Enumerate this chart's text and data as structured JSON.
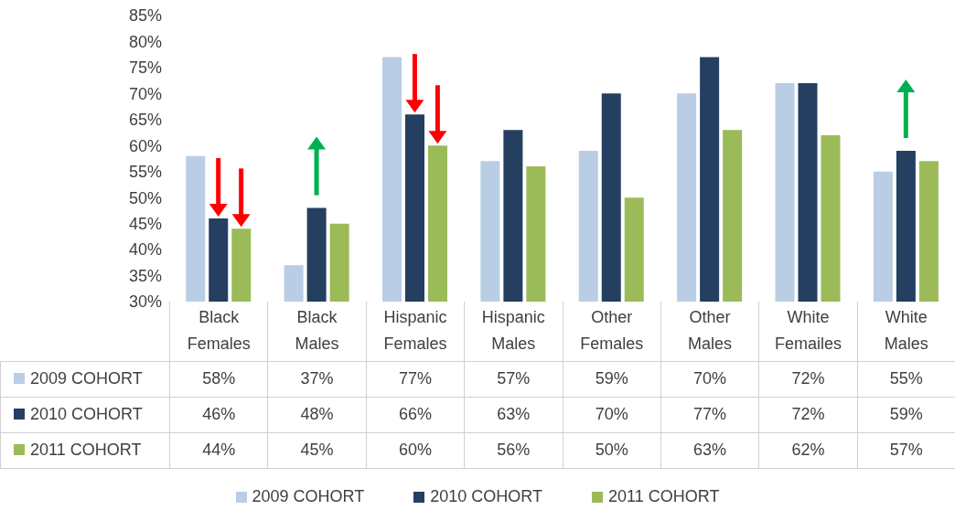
{
  "chart_data": {
    "type": "bar",
    "categories": [
      "Black Females",
      "Black Males",
      "Hispanic Females",
      "Hispanic Males",
      "Other Females",
      "Other Males",
      "White Femailes",
      "White Males"
    ],
    "series": [
      {
        "name": "2009 COHORT",
        "color": "#b9cde5",
        "values": [
          58,
          37,
          77,
          57,
          59,
          70,
          72,
          55
        ],
        "value_labels": [
          "58%",
          "37%",
          "77%",
          "57%",
          "59%",
          "70%",
          "72%",
          "55%"
        ]
      },
      {
        "name": "2010 COHORT",
        "color": "#243f60",
        "values": [
          46,
          48,
          66,
          63,
          70,
          77,
          72,
          59
        ],
        "value_labels": [
          "46%",
          "48%",
          "66%",
          "63%",
          "70%",
          "77%",
          "72%",
          "59%"
        ]
      },
      {
        "name": "2011 COHORT",
        "color": "#9bbb59",
        "values": [
          44,
          45,
          60,
          56,
          50,
          63,
          62,
          57
        ],
        "value_labels": [
          "44%",
          "45%",
          "60%",
          "56%",
          "50%",
          "63%",
          "62%",
          "57%"
        ]
      }
    ],
    "ylim": [
      30,
      85
    ],
    "yticks": [
      {
        "value": 30,
        "label": "30%"
      },
      {
        "value": 35,
        "label": "35%"
      },
      {
        "value": 40,
        "label": "40%"
      },
      {
        "value": 45,
        "label": "45%"
      },
      {
        "value": 50,
        "label": "50%"
      },
      {
        "value": 55,
        "label": "55%"
      },
      {
        "value": 60,
        "label": "60%"
      },
      {
        "value": 65,
        "label": "65%"
      },
      {
        "value": 70,
        "label": "70%"
      },
      {
        "value": 75,
        "label": "75%"
      },
      {
        "value": 80,
        "label": "80%"
      },
      {
        "value": 85,
        "label": "85%"
      }
    ],
    "grid": false,
    "legend": "bottom"
  }
}
